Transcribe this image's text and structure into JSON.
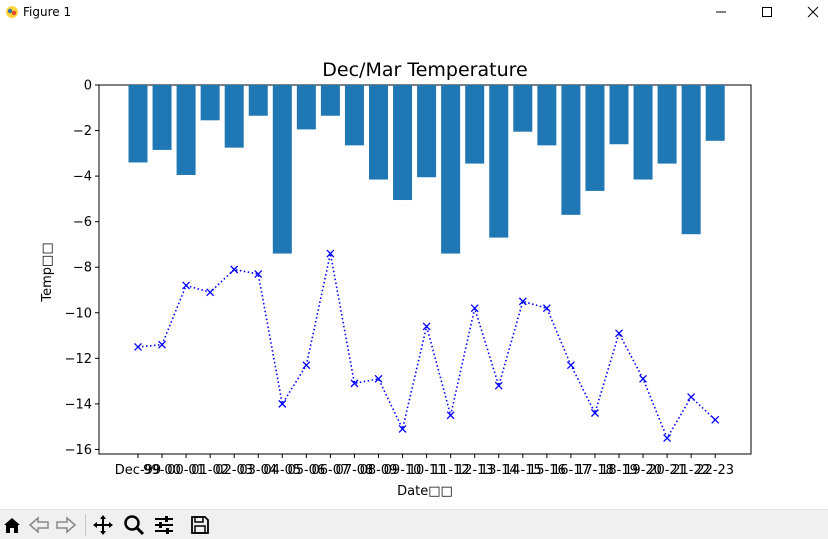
{
  "window": {
    "title": "Figure 1"
  },
  "toolbar": {
    "icons": [
      "home-icon",
      "back-icon",
      "forward-icon",
      "pan-icon",
      "zoom-icon",
      "configure-subplots-icon",
      "save-icon"
    ]
  },
  "chart_data": {
    "type": "bar",
    "title": "Dec/Mar Temperature",
    "xlabel": "Date□□",
    "ylabel": "Temp□□",
    "ylim": [
      -16.2,
      0
    ],
    "yticks": [
      0,
      -2,
      -4,
      -6,
      -8,
      -10,
      -12,
      -14,
      -16
    ],
    "categories": [
      "Dec-99",
      "99-00",
      "00-01",
      "01-02",
      "02-03",
      "03-04",
      "04-05",
      "05-06",
      "06-07",
      "07-08",
      "08-09",
      "09-10",
      "10-11",
      "11-12",
      "12-13",
      "13-14",
      "14-15",
      "15-16",
      "16-17",
      "17-18",
      "18-19",
      "19-20",
      "20-21",
      "21-22",
      "22-23"
    ],
    "tick_labels_rendered": [
      "Dec-99",
      "99-00",
      "00-01",
      "01-02",
      "02-03",
      "03-04",
      "04-05",
      "05-06",
      "06-07",
      "07-08",
      "08-09",
      "09-10",
      "10-11",
      "11-12",
      "12-13",
      "13-14",
      "14-15",
      "15-16",
      "16-17",
      "17-18",
      "18-19",
      "19-20",
      "20-21",
      "21-22",
      "22-23"
    ],
    "series": [
      {
        "type": "bar",
        "color": "#1f77b4",
        "values": [
          -3.4,
          -2.85,
          -3.95,
          -1.55,
          -2.75,
          -1.35,
          -7.4,
          -1.95,
          -1.35,
          -2.65,
          -4.15,
          -5.05,
          -4.05,
          -7.4,
          -3.45,
          -6.7,
          -2.05,
          -2.65,
          -5.7,
          -4.65,
          -2.6,
          -4.15,
          -3.45,
          -6.55,
          -2.45
        ]
      },
      {
        "type": "line",
        "color": "#0000ff",
        "linestyle": "dotted",
        "marker": "x",
        "values": [
          -11.5,
          -11.4,
          -8.8,
          -9.1,
          -8.1,
          -8.3,
          -14.0,
          -12.3,
          -7.4,
          -13.1,
          -12.9,
          -15.1,
          -10.6,
          -14.5,
          -9.8,
          -13.2,
          -9.5,
          -9.8,
          -12.3,
          -14.4,
          -10.9,
          -12.9,
          -15.5,
          -13.7,
          -14.7
        ]
      }
    ]
  }
}
